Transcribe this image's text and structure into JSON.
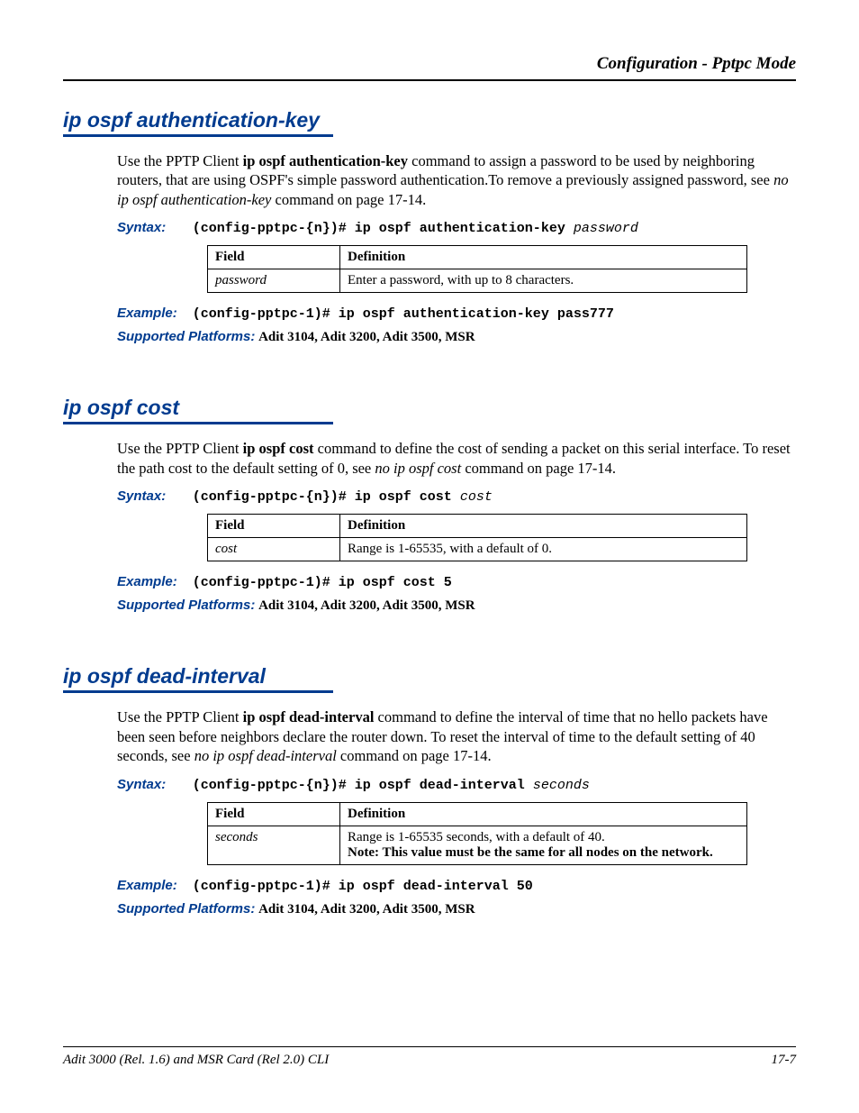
{
  "header": {
    "title": "Configuration - Pptpc Mode"
  },
  "sections": [
    {
      "title": "ip ospf authentication-key",
      "para_parts": [
        {
          "t": "Use the PPTP Client "
        },
        {
          "t": "ip ospf authentication-key",
          "b": true
        },
        {
          "t": " command to assign a password to be used by neighboring routers, that are using OSPF's simple password authentication.To remove a previously assigned password, see "
        },
        {
          "t": "no ip ospf authentication-key",
          "i": true
        },
        {
          "t": " command on page 17-14."
        }
      ],
      "syntax_prefix": "(config-pptpc-{n})# ip ospf authentication-key ",
      "syntax_param": "password",
      "table": {
        "headers": [
          "Field",
          "Definition"
        ],
        "rows": [
          {
            "field": "password",
            "def_parts": [
              {
                "t": "Enter a password, with up to 8 characters."
              }
            ]
          }
        ]
      },
      "example": "(config-pptpc-1)# ip ospf authentication-key pass777",
      "platforms": "Adit 3104, Adit 3200, Adit 3500, MSR"
    },
    {
      "title": "ip ospf cost",
      "para_parts": [
        {
          "t": "Use the PPTP Client "
        },
        {
          "t": "ip ospf cost",
          "b": true
        },
        {
          "t": " command to define the cost of sending a packet on this serial interface. To reset the path cost to the default setting of 0, see "
        },
        {
          "t": "no ip ospf cost",
          "i": true
        },
        {
          "t": " command on page 17-14."
        }
      ],
      "syntax_prefix": "(config-pptpc-{n})# ip ospf cost ",
      "syntax_param": "cost",
      "table": {
        "headers": [
          "Field",
          "Definition"
        ],
        "rows": [
          {
            "field": "cost",
            "def_parts": [
              {
                "t": "Range is 1-65535, with a default of 0."
              }
            ]
          }
        ]
      },
      "example": "(config-pptpc-1)# ip ospf cost 5",
      "platforms": "Adit 3104, Adit 3200, Adit 3500, MSR"
    },
    {
      "title": "ip ospf dead-interval",
      "para_parts": [
        {
          "t": "Use the PPTP Client "
        },
        {
          "t": "ip ospf dead-interval",
          "b": true
        },
        {
          "t": " command to define the interval of time that no hello packets have been seen before neighbors declare the router down. To reset the interval of time to the default setting of 40 seconds, see "
        },
        {
          "t": "no ip ospf dead-interval",
          "i": true
        },
        {
          "t": " command on page 17-14."
        }
      ],
      "syntax_prefix": "(config-pptpc-{n})# ip ospf dead-interval ",
      "syntax_param": "seconds",
      "table": {
        "headers": [
          "Field",
          "Definition"
        ],
        "rows": [
          {
            "field": "seconds",
            "def_parts": [
              {
                "t": "Range is 1-65535 seconds, with a default of 40."
              },
              {
                "br": true
              },
              {
                "t": "Note: This value must be the same for all nodes on the network.",
                "b": true
              }
            ]
          }
        ]
      },
      "example": "(config-pptpc-1)# ip ospf dead-interval 50",
      "platforms": "Adit 3104, Adit 3200, Adit 3500, MSR"
    }
  ],
  "labels": {
    "syntax": "Syntax:",
    "example": "Example:",
    "platforms": "Supported Platforms:"
  },
  "footer": {
    "left": "Adit 3000 (Rel. 1.6) and MSR Card (Rel 2.0) CLI",
    "right": "17-7"
  }
}
